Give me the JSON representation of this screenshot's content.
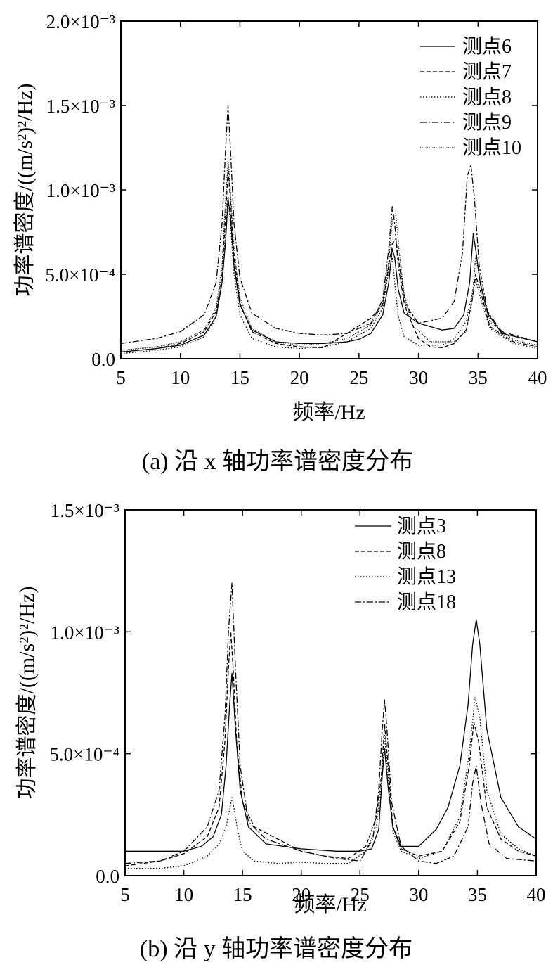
{
  "charts": [
    {
      "axes": {
        "y_tick_labels": [
          "0.0",
          "5.0×10⁻⁴",
          "1.0×10⁻³",
          "1.5×10⁻³",
          "2.0×10⁻³"
        ],
        "x_tick_labels": [
          "5",
          "10",
          "15",
          "20",
          "25",
          "30",
          "35",
          "40"
        ]
      }
    },
    {
      "axes": {
        "y_tick_labels": [
          "0.0",
          "5.0×10⁻⁴",
          "1.0×10⁻³",
          "1.5×10⁻³"
        ],
        "x_tick_labels": [
          "5",
          "10",
          "15",
          "20",
          "25",
          "30",
          "35",
          "40"
        ]
      }
    }
  ],
  "chart_data": [
    {
      "type": "line",
      "caption": "(a)  沿 x 轴功率谱密度分布",
      "xlabel": "频率/Hz",
      "ylabel": "功率谱密度/((m/s²)²/Hz)",
      "xlim": [
        5,
        40
      ],
      "ylim": [
        0,
        0.002
      ],
      "xticks": [
        5,
        10,
        15,
        20,
        25,
        30,
        35,
        40
      ],
      "yticks": [
        0,
        0.0005,
        0.001,
        0.0015,
        0.002
      ],
      "legend_position": "top-right",
      "grid": false,
      "series": [
        {
          "name": "测点6",
          "dash": "solid",
          "x": [
            5,
            8,
            10,
            12,
            13,
            13.5,
            13.8,
            14,
            14.2,
            14.5,
            15,
            16,
            18,
            20,
            22,
            24,
            25,
            26,
            27,
            27.5,
            27.8,
            28,
            28.3,
            28.8,
            30,
            32,
            33,
            33.8,
            34.3,
            34.6,
            34.8,
            35.2,
            35.8,
            37,
            40
          ],
          "y": [
            4e-05,
            6e-05,
            8e-05,
            0.00014,
            0.00025,
            0.00045,
            0.0007,
            0.00095,
            0.00085,
            0.00055,
            0.00032,
            0.00017,
            0.0001,
            9e-05,
            9e-05,
            0.0001,
            0.000115,
            0.00015,
            0.00026,
            0.00045,
            0.00065,
            0.0006,
            0.00041,
            0.00027,
            0.00021,
            0.00017,
            0.00018,
            0.00026,
            0.00045,
            0.00074,
            0.00065,
            0.00044,
            0.00027,
            0.00015,
            0.0001
          ]
        },
        {
          "name": "测点7",
          "dash": "dashed",
          "x": [
            5,
            8,
            10,
            12,
            13,
            13.5,
            13.8,
            14,
            14.2,
            14.5,
            15,
            16,
            18,
            20,
            22,
            24,
            26,
            27,
            27.5,
            27.8,
            28.1,
            28.5,
            29,
            30,
            31,
            32,
            33,
            34,
            34.5,
            34.8,
            35.2,
            36,
            38,
            40
          ],
          "y": [
            4e-05,
            6e-05,
            9e-05,
            0.00016,
            0.00028,
            0.0005,
            0.00085,
            0.00112,
            0.00095,
            0.0006,
            0.00033,
            0.00016,
            9e-05,
            7e-05,
            6.5e-05,
            0.00015,
            0.00024,
            0.00032,
            0.00055,
            0.00068,
            0.00071,
            0.0005,
            0.00028,
            0.00012,
            7e-05,
            6.5e-05,
            9e-05,
            0.00017,
            0.00034,
            0.0005,
            0.0004,
            0.00019,
            0.0001,
            7e-05
          ]
        },
        {
          "name": "测点8",
          "dash": "dotted",
          "x": [
            5,
            8,
            10,
            12,
            13,
            13.5,
            13.8,
            14,
            14.2,
            14.5,
            15,
            16,
            18,
            20,
            22,
            24,
            26,
            27,
            27.5,
            27.8,
            28,
            28.3,
            28.8,
            30,
            32,
            33,
            34,
            34.5,
            34.8,
            35.2,
            36,
            38,
            40
          ],
          "y": [
            3e-05,
            5e-05,
            7e-05,
            0.00013,
            0.00024,
            0.00045,
            0.00075,
            0.00097,
            0.0008,
            0.0005,
            0.00026,
            0.00012,
            7e-05,
            6e-05,
            7e-05,
            0.0001,
            0.00018,
            0.0003,
            0.00052,
            0.0006,
            0.00045,
            0.00025,
            0.00013,
            8e-05,
            8e-05,
            0.00012,
            0.00022,
            0.00038,
            0.00047,
            0.00036,
            0.00018,
            9e-05,
            6e-05
          ]
        },
        {
          "name": "测点9",
          "dash": "dashdot",
          "x": [
            5,
            8,
            10,
            12,
            13,
            13.5,
            13.8,
            14,
            14.2,
            14.5,
            15,
            16,
            18,
            20,
            22,
            24,
            26,
            27,
            27.5,
            27.8,
            28,
            28.3,
            28.8,
            30,
            32,
            33,
            33.7,
            34.1,
            34.4,
            34.7,
            35.1,
            35.8,
            37,
            40
          ],
          "y": [
            9e-05,
            0.00012,
            0.00016,
            0.00026,
            0.00045,
            0.0008,
            0.00125,
            0.0015,
            0.00125,
            0.0008,
            0.00048,
            0.00027,
            0.00018,
            0.00015,
            0.00014,
            0.00015,
            0.00021,
            0.00035,
            0.00065,
            0.0009,
            0.0008,
            0.00055,
            0.00033,
            0.00021,
            0.00024,
            0.00034,
            0.00063,
            0.00108,
            0.00115,
            0.00095,
            0.00055,
            0.00028,
            0.00016,
            0.0001
          ]
        },
        {
          "name": "测点10",
          "dash": "densedot",
          "x": [
            5,
            8,
            10,
            12,
            13,
            13.5,
            13.8,
            14,
            14.2,
            14.5,
            15,
            16,
            18,
            20,
            22,
            24,
            26,
            27,
            27.5,
            27.8,
            28.1,
            28.4,
            28.8,
            29.5,
            31,
            33,
            34,
            34.5,
            34.8,
            35.2,
            36,
            38,
            40
          ],
          "y": [
            5e-05,
            7e-05,
            0.0001,
            0.00017,
            0.0003,
            0.00055,
            0.00095,
            0.00118,
            0.001,
            0.00065,
            0.00036,
            0.00018,
            0.0001,
            8e-05,
            9e-05,
            0.00012,
            0.0002,
            0.00033,
            0.00058,
            0.00082,
            0.00086,
            0.00062,
            0.00038,
            0.0002,
            0.0001,
            0.0001,
            0.00016,
            0.00035,
            0.0006,
            0.00046,
            0.00022,
            0.00011,
            8e-05
          ]
        }
      ]
    },
    {
      "type": "line",
      "caption": "(b)  沿 y 轴功率谱密度分布",
      "xlabel": "频率/Hz",
      "ylabel": "功率谱密度/((m/s²)²/Hz)",
      "xlim": [
        5,
        40
      ],
      "ylim": [
        0,
        0.0015
      ],
      "xticks": [
        5,
        10,
        15,
        20,
        25,
        30,
        35,
        40
      ],
      "yticks": [
        0,
        0.0005,
        0.001,
        0.0015
      ],
      "legend_position": "top-right",
      "grid": false,
      "series": [
        {
          "name": "测点3",
          "dash": "solid",
          "x": [
            5,
            8,
            10,
            11.5,
            12.5,
            13.2,
            13.6,
            13.9,
            14.1,
            14.4,
            14.8,
            15.5,
            17,
            20,
            23,
            25,
            26,
            26.6,
            26.9,
            27.1,
            27.4,
            27.8,
            28.5,
            30,
            31.5,
            32.5,
            33.5,
            34.2,
            34.6,
            34.9,
            35.2,
            35.8,
            37,
            38.5,
            40
          ],
          "y": [
            0.0001,
            0.0001,
            0.0001,
            0.00012,
            0.00016,
            0.00025,
            0.00045,
            0.0007,
            0.00083,
            0.0006,
            0.00035,
            0.0002,
            0.00013,
            0.00011,
            0.0001,
            0.0001,
            0.00011,
            0.00019,
            0.00041,
            0.00052,
            0.00036,
            0.0002,
            0.00012,
            0.00012,
            0.00019,
            0.00028,
            0.00045,
            0.0007,
            0.00095,
            0.00105,
            0.00095,
            0.0006,
            0.00032,
            0.0002,
            0.00015
          ]
        },
        {
          "name": "测点8",
          "dash": "dashed",
          "x": [
            5,
            8,
            10,
            12,
            13,
            13.5,
            13.8,
            14,
            14.2,
            14.5,
            15,
            16,
            18,
            20,
            22,
            24,
            25.5,
            26.4,
            26.8,
            27.1,
            27.4,
            27.8,
            28.5,
            30,
            32,
            33.5,
            34.3,
            34.7,
            35.1,
            35.8,
            37,
            38.5,
            40
          ],
          "y": [
            4e-05,
            6e-05,
            9e-05,
            0.00016,
            0.00028,
            0.00055,
            0.00085,
            0.001,
            0.00085,
            0.00055,
            0.0003,
            0.0002,
            0.00015,
            0.0001,
            8e-05,
            7e-05,
            0.00012,
            0.00024,
            0.0004,
            0.00062,
            0.00045,
            0.0002,
            0.00011,
            8e-05,
            0.0001,
            0.00022,
            0.00045,
            0.00063,
            0.00055,
            0.00028,
            0.00015,
            0.0001,
            8e-05
          ]
        },
        {
          "name": "测点13",
          "dash": "dotted",
          "x": [
            5,
            8,
            10,
            12,
            13,
            13.6,
            13.9,
            14.1,
            14.3,
            14.6,
            15,
            16,
            18,
            20,
            22,
            24,
            25.5,
            26.4,
            26.8,
            27.1,
            27.4,
            27.8,
            28.5,
            30,
            32,
            33.5,
            34.3,
            34.8,
            35.2,
            35.8,
            37,
            38.5,
            40
          ],
          "y": [
            3e-05,
            3e-05,
            4e-05,
            8e-05,
            0.00013,
            0.0002,
            0.00027,
            0.00032,
            0.00027,
            0.00018,
            0.0001,
            6e-05,
            5e-05,
            5.5e-05,
            5e-05,
            5e-05,
            0.0001,
            0.0002,
            0.00036,
            0.00058,
            0.0004,
            0.00018,
            0.0001,
            7e-05,
            0.0001,
            0.00024,
            0.0005,
            0.00073,
            0.00065,
            0.00035,
            0.00017,
            0.00011,
            8e-05
          ]
        },
        {
          "name": "测点18",
          "dash": "dashdot",
          "x": [
            5,
            8,
            10,
            12,
            13,
            13.5,
            13.8,
            14.1,
            14.4,
            14.8,
            15.5,
            17,
            20,
            23,
            25,
            26.1,
            26.6,
            26.9,
            27.1,
            27.3,
            27.7,
            28.5,
            30,
            31.5,
            33,
            34.2,
            34.6,
            34.9,
            35.3,
            36,
            37.5,
            40
          ],
          "y": [
            5e-05,
            6e-05,
            0.0001,
            0.0002,
            0.00035,
            0.00065,
            0.001,
            0.0012,
            0.00085,
            0.00045,
            0.00022,
            0.00015,
            0.0001,
            7e-05,
            6e-05,
            0.00015,
            0.00035,
            0.0006,
            0.00072,
            0.0006,
            0.0003,
            0.00012,
            6e-05,
            5e-05,
            8e-05,
            0.0002,
            0.00038,
            0.00045,
            0.0003,
            0.00013,
            7e-05,
            6e-05
          ]
        }
      ]
    }
  ]
}
